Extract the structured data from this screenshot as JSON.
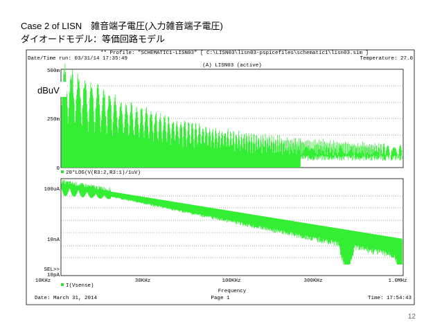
{
  "slide": {
    "title": "Case 2 of LISN　雑音端子電圧(入力雑音端子電圧)",
    "subtitle": "ダイオードモデル：等価回路モデル",
    "unit_label": "dBuV",
    "page_number": "12"
  },
  "plot": {
    "profile": "** Profile: \"SCHEMATIC1-LISN03\"  [ C:\\LISN03\\lisn03-pspicefiles\\schematic1\\lisn03.sim ]",
    "run": "Date/Time run: 03/31/14 17:35:49",
    "temperature": "Temperature: 27.0",
    "section": "(A) LISN03 (active)",
    "upper_ticks": [
      "500m",
      "250m",
      "0"
    ],
    "upper_trace": "20*LOG(V(R3:2,R3:1)/1uV)",
    "lower_ticks": [
      "100uA",
      "10nA",
      "SEL>>",
      "10pA"
    ],
    "x_ticks": [
      "10KHz",
      "30KHz",
      "100KHz",
      "300KHz",
      "1.0MHz"
    ],
    "lower_trace": "I(Vsense)",
    "x_label": "Frequency",
    "footer": {
      "date": "Date: March 31, 2014",
      "page": "Page 1",
      "time": "Time: 17:54:43"
    }
  }
}
